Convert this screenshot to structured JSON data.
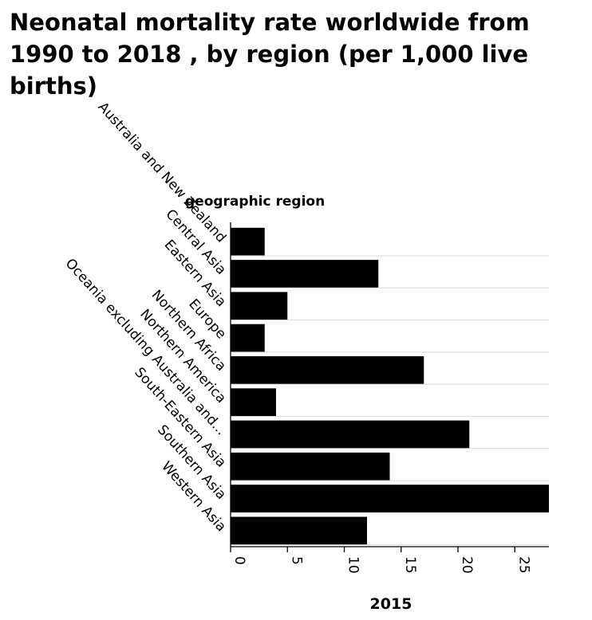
{
  "chart_data": {
    "type": "bar",
    "orientation": "horizontal",
    "title": "Neonatal mortality rate worldwide from 1990 to 2018 , by region (per 1,000 live births)",
    "ylabel": "geographic region",
    "xlabel": "2015",
    "categories": [
      "Australia and New Zealand",
      "Central Asia",
      "Eastern Asia",
      "Europe",
      "Northern Africa",
      "Northern America",
      "Oceania excluding Australia and...",
      "South-Eastern Asia",
      "Southern Asia",
      "Western Asia"
    ],
    "values": [
      3,
      13,
      5,
      3,
      17,
      4,
      21,
      14,
      28,
      12
    ],
    "xlim": [
      0,
      28
    ],
    "xticks": [
      "0",
      "5",
      "10",
      "15",
      "20",
      "25"
    ],
    "grid": true,
    "legend": "none",
    "colors": {
      "bar": "#000000",
      "grid": "#d9d9d9",
      "axis": "#000000"
    }
  }
}
